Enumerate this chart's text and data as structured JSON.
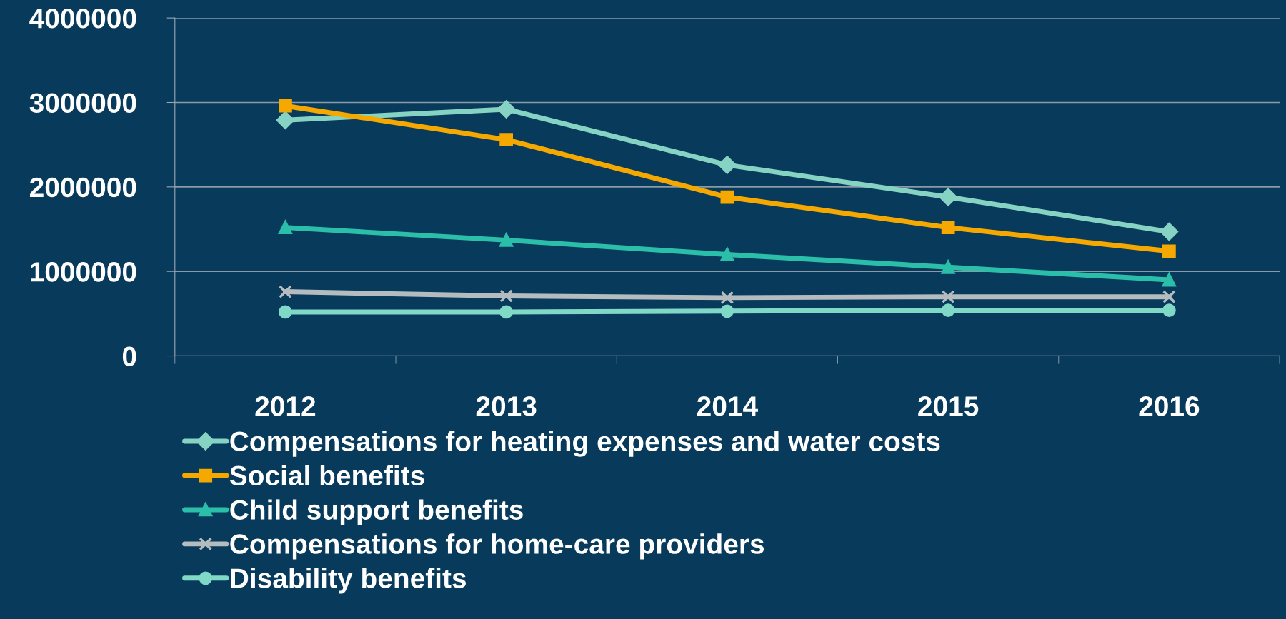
{
  "chart_data": {
    "type": "line",
    "categories": [
      "2012",
      "2013",
      "2014",
      "2015",
      "2016"
    ],
    "series": [
      {
        "name": "Compensations for heating expenses and water costs",
        "color": "#86d3c3",
        "marker": "diamond",
        "values": [
          2790000,
          2920000,
          2260000,
          1880000,
          1470000
        ]
      },
      {
        "name": "Social benefits",
        "color": "#f5a800",
        "marker": "square",
        "values": [
          2960000,
          2560000,
          1880000,
          1520000,
          1240000
        ]
      },
      {
        "name": "Child support benefits",
        "color": "#2bbfaa",
        "marker": "triangle",
        "values": [
          1520000,
          1370000,
          1200000,
          1050000,
          900000
        ]
      },
      {
        "name": "Compensations for home-care providers",
        "color": "#b4bcc0",
        "marker": "cross",
        "values": [
          760000,
          710000,
          690000,
          700000,
          700000
        ]
      },
      {
        "name": "Disability benefits",
        "color": "#80d8c6",
        "marker": "circle",
        "values": [
          520000,
          520000,
          530000,
          540000,
          540000
        ]
      }
    ],
    "ylim": [
      0,
      4000000
    ],
    "yticks": [
      0,
      1000000,
      2000000,
      3000000,
      4000000
    ],
    "grid": "y",
    "legend": "bottom"
  }
}
